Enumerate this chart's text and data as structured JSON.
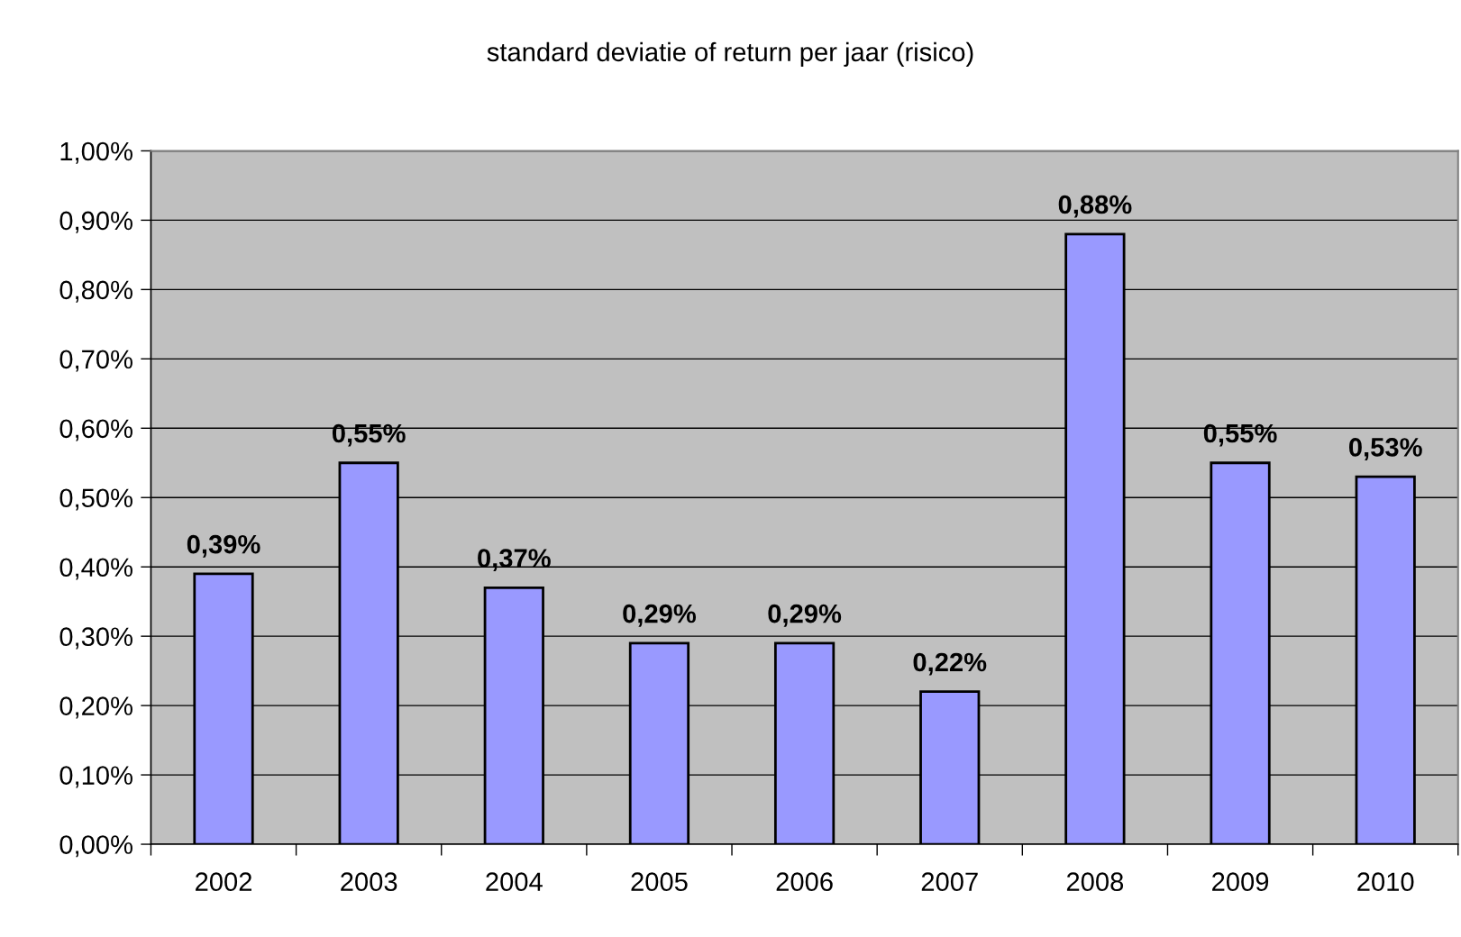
{
  "chart_data": {
    "type": "bar",
    "title": "standard deviatie of return per jaar (risico)",
    "categories": [
      "2002",
      "2003",
      "2004",
      "2005",
      "2006",
      "2007",
      "2008",
      "2009",
      "2010"
    ],
    "values": [
      0.39,
      0.55,
      0.37,
      0.29,
      0.29,
      0.22,
      0.88,
      0.55,
      0.53
    ],
    "color": "#9999ff",
    "value_labels": [
      "0,39%",
      "0,55%",
      "0,37%",
      "0,29%",
      "0,29%",
      "0,22%",
      "0,88%",
      "0,55%",
      "0,53%"
    ],
    "ylim": [
      0,
      1
    ],
    "yticks": [
      {
        "value": 0,
        "label": "0,00%"
      },
      {
        "value": 0.1,
        "label": "0,10%"
      },
      {
        "value": 0.2,
        "label": "0,20%"
      },
      {
        "value": 0.3,
        "label": "0,30%"
      },
      {
        "value": 0.4,
        "label": "0,40%"
      },
      {
        "value": 0.5,
        "label": "0,50%"
      },
      {
        "value": 0.6,
        "label": "0,60%"
      },
      {
        "value": 0.7,
        "label": "0,70%"
      },
      {
        "value": 0.8,
        "label": "0,80%"
      },
      {
        "value": 0.9,
        "label": "0,90%"
      },
      {
        "value": 1,
        "label": "1,00%"
      }
    ],
    "grid": "y"
  }
}
